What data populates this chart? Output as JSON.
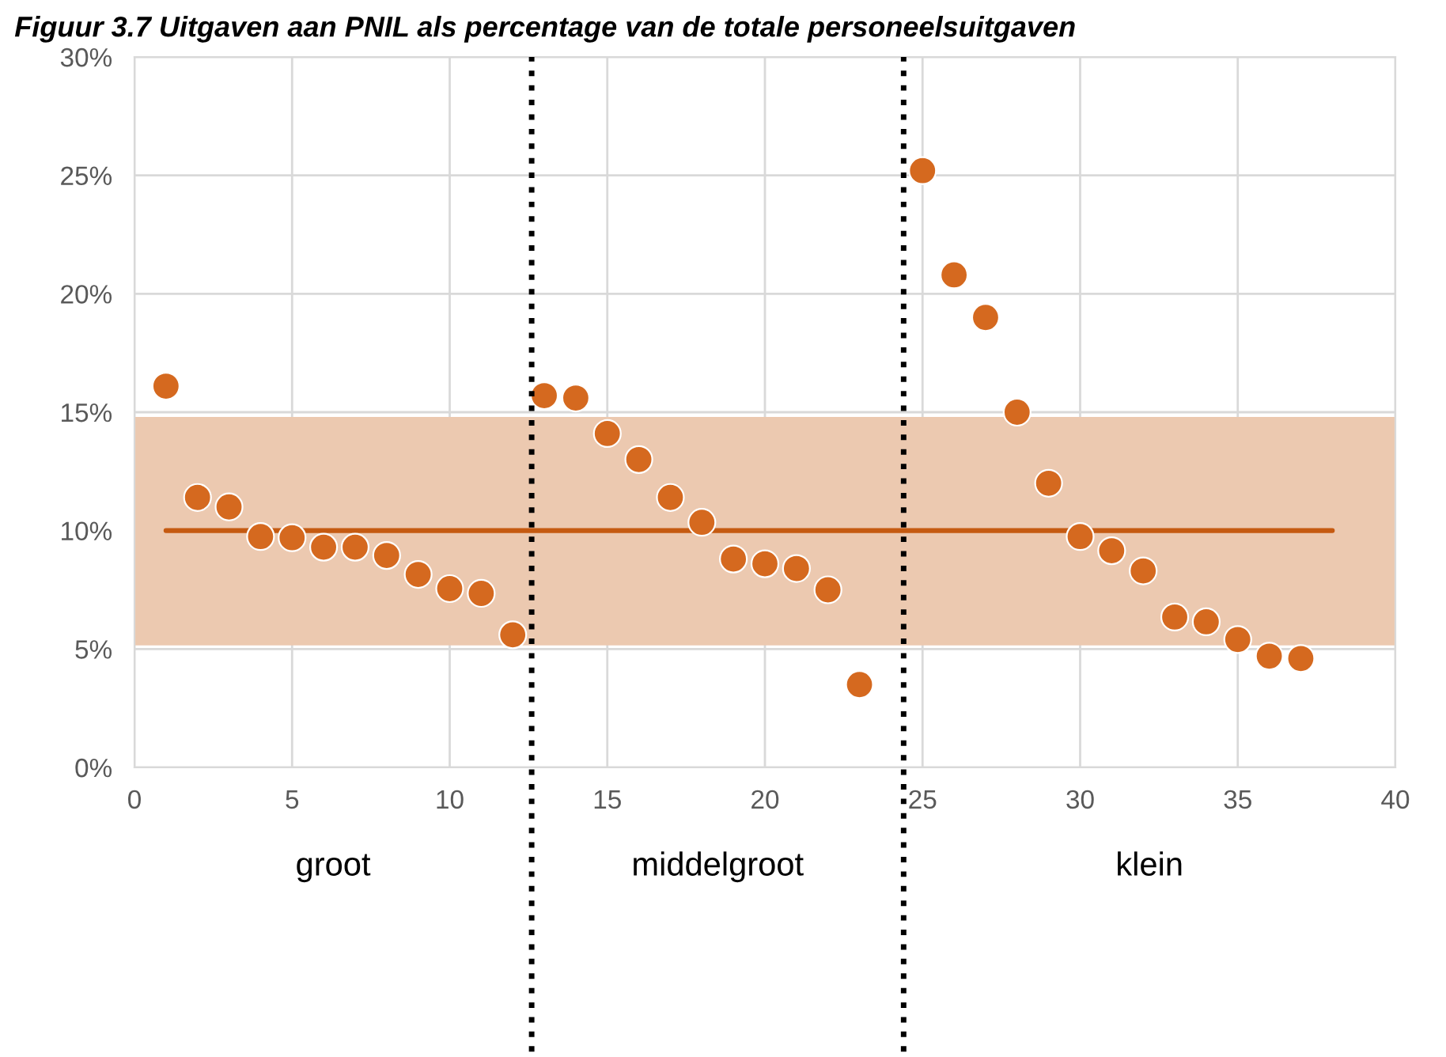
{
  "chart_data": {
    "type": "scatter",
    "title": "Figuur 3.7 Uitgaven aan PNIL als percentage van de totale personeelsuitgaven",
    "series": [
      {
        "color": "#d5691f",
        "marker": "circle",
        "x": [
          1,
          2,
          3,
          4,
          5,
          6,
          7,
          8,
          9,
          10,
          11,
          12,
          13,
          14,
          15,
          16,
          17,
          18,
          19,
          20,
          21,
          22,
          23,
          25,
          26,
          27,
          28,
          29,
          30,
          31,
          32,
          33,
          34,
          35,
          36,
          37
        ],
        "values": [
          16.1,
          11.4,
          11.0,
          9.75,
          9.7,
          9.3,
          9.3,
          8.95,
          8.15,
          7.55,
          7.35,
          5.6,
          15.7,
          15.6,
          14.1,
          13.0,
          11.4,
          10.35,
          8.8,
          8.6,
          8.4,
          7.5,
          3.5,
          25.2,
          20.8,
          19.0,
          15.0,
          12.0,
          9.75,
          9.15,
          8.3,
          6.35,
          6.15,
          5.4,
          4.7,
          4.6
        ]
      },
      {
        "type": "line",
        "marker": "none",
        "color": "#c55a11",
        "x": [
          1,
          38
        ],
        "values": [
          10,
          10
        ]
      }
    ],
    "bands": [
      {
        "axis": "y",
        "from": 5.15,
        "to": 14.8,
        "color": "#ecc9b0"
      }
    ],
    "ref_lines": [
      {
        "axis": "x",
        "value": 12.6,
        "color": "#000000",
        "line_style": "dotted"
      },
      {
        "axis": "x",
        "value": 24.4,
        "color": "#000000",
        "line_style": "dotted"
      }
    ],
    "annotations": [
      "groot",
      "middelgroot",
      "klein"
    ],
    "xlim": [
      0,
      40
    ],
    "xticks": [
      0,
      5,
      10,
      15,
      20,
      25,
      30,
      35,
      40
    ],
    "ylim": [
      0,
      30
    ],
    "yticks": [
      {
        "value": 0,
        "label": "0%"
      },
      {
        "value": 5,
        "label": "5%"
      },
      {
        "value": 10,
        "label": "10%"
      },
      {
        "value": 15,
        "label": "15%"
      },
      {
        "value": 20,
        "label": "20%"
      },
      {
        "value": 25,
        "label": "25%"
      },
      {
        "value": 30,
        "label": "30%"
      }
    ],
    "grid": true,
    "line_style": "solid",
    "legend": false
  }
}
